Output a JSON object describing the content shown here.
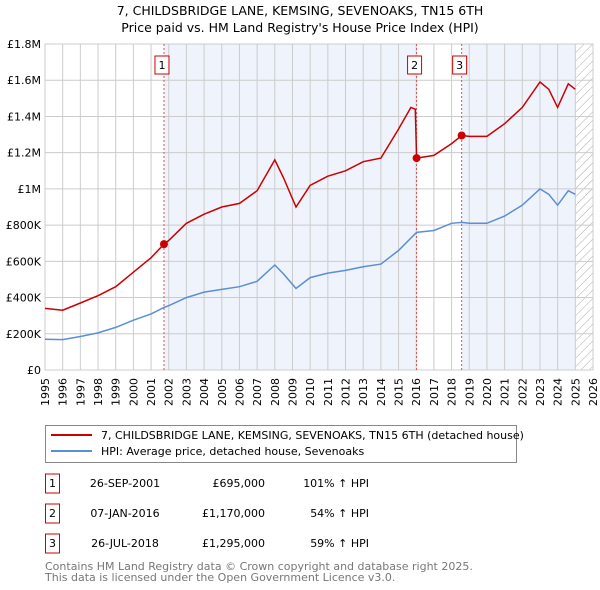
{
  "chart_data": {
    "type": "line",
    "title": "7, CHILDSBRIDGE LANE, KEMSING, SEVENOAKS, TN15 6TH",
    "subtitle": "Price paid vs. HM Land Registry's House Price Index (HPI)",
    "xlim": [
      1995,
      2026
    ],
    "ylim": [
      0,
      1800000
    ],
    "x_ticks": [
      "1995",
      "1996",
      "1997",
      "1998",
      "1999",
      "2000",
      "2001",
      "2002",
      "2003",
      "2004",
      "2005",
      "2006",
      "2007",
      "2008",
      "2009",
      "2010",
      "2011",
      "2012",
      "2013",
      "2014",
      "2015",
      "2016",
      "2017",
      "2018",
      "2019",
      "2020",
      "2021",
      "2022",
      "2023",
      "2024",
      "2025",
      "2026"
    ],
    "y_ticks": [
      {
        "v": 0,
        "label": "£0"
      },
      {
        "v": 200000,
        "label": "£200K"
      },
      {
        "v": 400000,
        "label": "£400K"
      },
      {
        "v": 600000,
        "label": "£600K"
      },
      {
        "v": 800000,
        "label": "£800K"
      },
      {
        "v": 1000000,
        "label": "£1M"
      },
      {
        "v": 1200000,
        "label": "£1.2M"
      },
      {
        "v": 1400000,
        "label": "£1.4M"
      },
      {
        "v": 1600000,
        "label": "£1.6M"
      },
      {
        "v": 1800000,
        "label": "£1.8M"
      }
    ],
    "grid": true,
    "shaded_ranges": [
      [
        2001.73,
        2016.02
      ],
      [
        2018.57,
        2025.0
      ]
    ],
    "hatched_range": [
      2025.0,
      2026
    ],
    "series": [
      {
        "name": "7, CHILDSBRIDGE LANE, KEMSING, SEVENOAKS, TN15 6TH (detached house)",
        "color": "#cc0000",
        "x": [
          1995,
          1996,
          1997,
          1998,
          1999,
          2000,
          2001,
          2001.73,
          2002,
          2003,
          2004,
          2005,
          2006,
          2007,
          2008,
          2008.5,
          2009.2,
          2010,
          2011,
          2012,
          2013,
          2014,
          2015,
          2015.7,
          2015.95,
          2016.02,
          2017,
          2018,
          2018.57,
          2019,
          2020,
          2021,
          2022,
          2023,
          2023.5,
          2024,
          2024.6,
          2025
        ],
        "y": [
          340000,
          330000,
          370000,
          410000,
          460000,
          540000,
          620000,
          695000,
          715000,
          810000,
          860000,
          900000,
          920000,
          990000,
          1160000,
          1060000,
          900000,
          1020000,
          1070000,
          1100000,
          1150000,
          1170000,
          1330000,
          1450000,
          1440000,
          1170000,
          1185000,
          1250000,
          1295000,
          1290000,
          1290000,
          1360000,
          1450000,
          1590000,
          1550000,
          1450000,
          1580000,
          1550000
        ]
      },
      {
        "name": "HPI: Average price, detached house, Sevenoaks",
        "color": "#5b8fd4",
        "x": [
          1995,
          1996,
          1997,
          1998,
          1999,
          2000,
          2001,
          2001.73,
          2002,
          2003,
          2004,
          2005,
          2006,
          2007,
          2008,
          2008.5,
          2009.2,
          2010,
          2011,
          2012,
          2013,
          2014,
          2015,
          2016.02,
          2017,
          2018,
          2018.57,
          2019,
          2020,
          2021,
          2022,
          2023,
          2023.5,
          2024,
          2024.6,
          2025
        ],
        "y": [
          170000,
          168000,
          185000,
          205000,
          235000,
          275000,
          310000,
          345000,
          355000,
          400000,
          430000,
          445000,
          460000,
          490000,
          580000,
          530000,
          450000,
          510000,
          535000,
          550000,
          570000,
          585000,
          660000,
          760000,
          770000,
          810000,
          815000,
          810000,
          810000,
          850000,
          910000,
          1000000,
          970000,
          910000,
          990000,
          970000
        ]
      }
    ],
    "sales": [
      {
        "id": "1",
        "x": 2001.73,
        "y": 695000,
        "date": "26-SEP-2001",
        "price": "£695,000",
        "hpi": "101% ↑ HPI"
      },
      {
        "id": "2",
        "x": 2016.02,
        "y": 1170000,
        "date": "07-JAN-2016",
        "price": "£1,170,000",
        "hpi": "54% ↑ HPI"
      },
      {
        "id": "3",
        "x": 2018.57,
        "y": 1295000,
        "date": "26-JUL-2018",
        "price": "£1,295,000",
        "hpi": "59% ↑ HPI"
      }
    ]
  },
  "footer": {
    "line1": "Contains HM Land Registry data © Crown copyright and database right 2025.",
    "line2": "This data is licensed under the Open Government Licence v3.0."
  }
}
